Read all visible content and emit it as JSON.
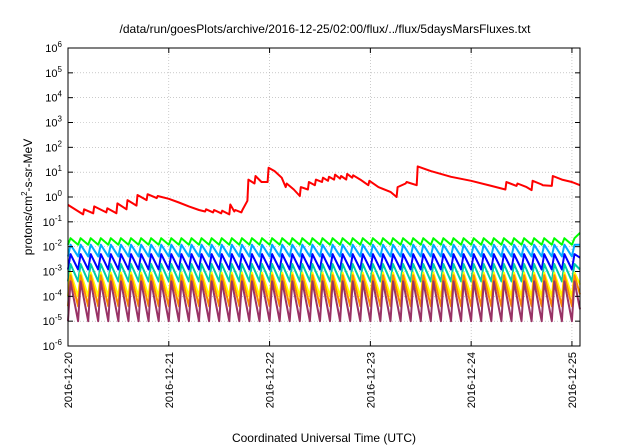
{
  "chart_data": {
    "type": "line",
    "title": "/data/run/goesPlots/archive/2016-12-25/02:00/flux/../flux/5daysMarsFluxes.txt",
    "xlabel": "Coordinated Universal Time (UTC)",
    "ylabel": {
      "prefix": "protons/cm",
      "sup": "2",
      "suffix": "-s-sr-MeV"
    },
    "y_scale": "log",
    "ylim_exp": [
      -6,
      6
    ],
    "y_ticks": [
      {
        "base": "10",
        "exp": "-6"
      },
      {
        "base": "10",
        "exp": "-5"
      },
      {
        "base": "10",
        "exp": "-4"
      },
      {
        "base": "10",
        "exp": "-3"
      },
      {
        "base": "10",
        "exp": "-2"
      },
      {
        "base": "10",
        "exp": "-1"
      },
      {
        "base": "10",
        "exp": "0"
      },
      {
        "base": "10",
        "exp": "1"
      },
      {
        "base": "10",
        "exp": "2"
      },
      {
        "base": "10",
        "exp": "3"
      },
      {
        "base": "10",
        "exp": "4"
      },
      {
        "base": "10",
        "exp": "5"
      },
      {
        "base": "10",
        "exp": "6"
      }
    ],
    "x_ticks": [
      "2016-12-20",
      "2016-12-21",
      "2016-12-22",
      "2016-12-23",
      "2016-12-24",
      "2016-12-25"
    ],
    "x_range_days": [
      0,
      5.08
    ],
    "grid": true,
    "series": [
      {
        "color": "#ff0000",
        "points": [
          [
            0.0,
            0.48
          ],
          [
            0.15,
            0.2
          ],
          [
            0.16,
            0.32
          ],
          [
            0.25,
            0.22
          ],
          [
            0.26,
            0.42
          ],
          [
            0.38,
            0.24
          ],
          [
            0.39,
            0.35
          ],
          [
            0.48,
            0.22
          ],
          [
            0.49,
            0.55
          ],
          [
            0.58,
            0.32
          ],
          [
            0.59,
            0.75
          ],
          [
            0.68,
            0.45
          ],
          [
            0.69,
            1.2
          ],
          [
            0.78,
            0.75
          ],
          [
            0.79,
            1.3
          ],
          [
            0.88,
            0.9
          ],
          [
            0.89,
            1.1
          ],
          [
            1.0,
            0.85
          ],
          [
            1.1,
            0.6
          ],
          [
            1.2,
            0.42
          ],
          [
            1.3,
            0.3
          ],
          [
            1.36,
            0.26
          ],
          [
            1.37,
            0.32
          ],
          [
            1.44,
            0.24
          ],
          [
            1.45,
            0.3
          ],
          [
            1.52,
            0.22
          ],
          [
            1.53,
            0.28
          ],
          [
            1.6,
            0.2
          ],
          [
            1.61,
            0.5
          ],
          [
            1.65,
            0.26
          ],
          [
            1.66,
            0.3
          ],
          [
            1.72,
            0.24
          ],
          [
            1.73,
            0.3
          ],
          [
            1.78,
            0.7
          ],
          [
            1.79,
            5.0
          ],
          [
            1.85,
            3.5
          ],
          [
            1.86,
            7.0
          ],
          [
            1.92,
            4.0
          ],
          [
            1.93,
            4.0
          ],
          [
            1.98,
            4.0
          ],
          [
            1.99,
            15.0
          ],
          [
            2.05,
            11.0
          ],
          [
            2.12,
            6.0
          ],
          [
            2.16,
            2.5
          ],
          [
            2.17,
            3.5
          ],
          [
            2.24,
            2.0
          ],
          [
            2.3,
            1.1
          ],
          [
            2.31,
            2.5
          ],
          [
            2.38,
            2.0
          ],
          [
            2.39,
            4.0
          ],
          [
            2.45,
            3.0
          ],
          [
            2.46,
            5.0
          ],
          [
            2.52,
            4.0
          ],
          [
            2.53,
            6.0
          ],
          [
            2.58,
            4.5
          ],
          [
            2.59,
            6.5
          ],
          [
            2.64,
            5.0
          ],
          [
            2.65,
            8.0
          ],
          [
            2.7,
            5.5
          ],
          [
            2.71,
            7.0
          ],
          [
            2.76,
            5.0
          ],
          [
            2.77,
            8.5
          ],
          [
            2.82,
            6.0
          ],
          [
            2.83,
            7.5
          ],
          [
            2.9,
            5.0
          ],
          [
            2.98,
            3.0
          ],
          [
            2.99,
            4.5
          ],
          [
            3.08,
            2.5
          ],
          [
            3.2,
            1.6
          ],
          [
            3.26,
            1.0
          ],
          [
            3.27,
            2.5
          ],
          [
            3.35,
            3.5
          ],
          [
            3.36,
            4.0
          ],
          [
            3.46,
            3.0
          ],
          [
            3.47,
            17.0
          ],
          [
            3.6,
            11.0
          ],
          [
            3.8,
            6.5
          ],
          [
            4.0,
            4.5
          ],
          [
            4.2,
            2.8
          ],
          [
            4.34,
            2.0
          ],
          [
            4.35,
            4.0
          ],
          [
            4.45,
            2.8
          ],
          [
            4.46,
            3.5
          ],
          [
            4.55,
            2.5
          ],
          [
            4.6,
            1.9
          ],
          [
            4.61,
            4.5
          ],
          [
            4.7,
            3.2
          ],
          [
            4.71,
            3.0
          ],
          [
            4.8,
            2.8
          ],
          [
            4.81,
            7.0
          ],
          [
            4.9,
            5.0
          ],
          [
            5.0,
            4.0
          ],
          [
            5.08,
            3.0
          ]
        ]
      },
      {
        "color": "#00ff00",
        "shape": "sawtooth",
        "peak": 0.022,
        "trough": 0.012,
        "period": 0.1
      },
      {
        "color": "#00aaff",
        "shape": "sawtooth",
        "peak": 0.012,
        "trough": 0.004,
        "period": 0.1
      },
      {
        "color": "#0000ff",
        "shape": "sawtooth",
        "peak": 0.005,
        "trough": 0.0012,
        "period": 0.1
      },
      {
        "color": "#00ccaa",
        "shape": "sawtooth",
        "peak": 0.002,
        "trough": 0.0004,
        "period": 0.1
      },
      {
        "color": "#ffff00",
        "shape": "sawtooth",
        "peak": 0.0009,
        "trough": 0.0001,
        "period": 0.1
      },
      {
        "color": "#ff8800",
        "shape": "sawtooth",
        "peak": 0.0007,
        "trough": 4e-05,
        "period": 0.1
      },
      {
        "color": "#993366",
        "shape": "sawtooth",
        "peak": 0.0004,
        "trough": 1e-05,
        "period": 0.1
      }
    ]
  }
}
